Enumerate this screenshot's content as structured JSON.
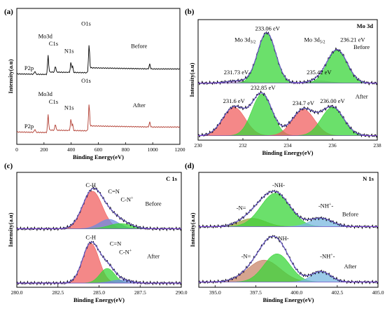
{
  "chart_data": [
    {
      "panel": "(a)",
      "type": "line",
      "xlabel": "Binding Energy(eV)",
      "ylabel": "Intensity(a.u)",
      "xlim": [
        0,
        1200
      ],
      "xticks": [
        0,
        200,
        400,
        600,
        800,
        1000,
        1200
      ],
      "series": [
        {
          "name": "Before",
          "color": "#000000",
          "baseline": 55,
          "peaks": [
            [
              133,
              2.5
            ],
            [
              230,
              14
            ],
            [
              284,
              5
            ],
            [
              398,
              8
            ],
            [
              410,
              5
            ],
            [
              531,
              22
            ],
            [
              978,
              4
            ]
          ]
        },
        {
          "name": "After",
          "color": "#b03a2e",
          "baseline": 8,
          "peaks": [
            [
              133,
              2.5
            ],
            [
              230,
              13
            ],
            [
              284,
              5
            ],
            [
              398,
              9
            ],
            [
              410,
              5
            ],
            [
              531,
              21
            ],
            [
              978,
              4
            ]
          ]
        }
      ],
      "annotations": [
        {
          "text": "Mo3d",
          "x": 210,
          "y": 86,
          "color": "#000000"
        },
        {
          "text": "C1s",
          "x": 270,
          "y": 80,
          "color": "#000000"
        },
        {
          "text": "N1s",
          "x": 385,
          "y": 74,
          "color": "#000000"
        },
        {
          "text": "O1s",
          "x": 510,
          "y": 96,
          "color": "#000000"
        },
        {
          "text": "P2p",
          "x": 90,
          "y": 60,
          "color": "#000000"
        },
        {
          "text": "Before",
          "x": 900,
          "y": 78,
          "color": "#000000"
        },
        {
          "text": "Mo3d",
          "x": 210,
          "y": 39,
          "color": "#b03a2e"
        },
        {
          "text": "C1s",
          "x": 270,
          "y": 33,
          "color": "#b03a2e"
        },
        {
          "text": "N1s",
          "x": 385,
          "y": 28,
          "color": "#b03a2e"
        },
        {
          "text": "O1s",
          "x": 510,
          "y": 50,
          "color": "#b03a2e"
        },
        {
          "text": "P2p",
          "x": 90,
          "y": 13,
          "color": "#b03a2e"
        },
        {
          "text": "After",
          "x": 900,
          "y": 30,
          "color": "#b03a2e"
        }
      ]
    },
    {
      "panel": "(b)",
      "title": "Mo 3d",
      "type": "line",
      "xlabel": "Binding Energy(eV)",
      "ylabel": "Intensity(a.u)",
      "xlim": [
        230,
        238
      ],
      "xticks": [
        230,
        232,
        234,
        236,
        238
      ],
      "series": [
        {
          "name": "Before",
          "baseline": 52,
          "components": [
            {
              "center": 231.73,
              "height": 2,
              "width": 0.5,
              "color": "#c8a0d8"
            },
            {
              "center": 233.06,
              "height": 46,
              "width": 0.4,
              "color": "#39d639"
            },
            {
              "center": 235.42,
              "height": 2,
              "width": 0.5,
              "color": "#c8a0d8"
            },
            {
              "center": 236.21,
              "height": 30,
              "width": 0.45,
              "color": "#39d639"
            }
          ]
        },
        {
          "name": "After",
          "baseline": 4,
          "components": [
            {
              "center": 231.6,
              "height": 26,
              "width": 0.5,
              "color": "#f06060"
            },
            {
              "center": 232.85,
              "height": 38,
              "width": 0.45,
              "color": "#39d639"
            },
            {
              "center": 234.7,
              "height": 24,
              "width": 0.5,
              "color": "#f06060"
            },
            {
              "center": 236.0,
              "height": 26,
              "width": 0.5,
              "color": "#39d639"
            }
          ]
        }
      ],
      "annotations": [
        {
          "text": "233.06 eV",
          "x": 233.1,
          "y": 100
        },
        {
          "text": "Mo 3d",
          "sub": "3/2",
          "x": 232.1,
          "y": 90
        },
        {
          "text": "Mo 3d",
          "sub": "5/2",
          "x": 235.2,
          "y": 90
        },
        {
          "text": "236.21 eV",
          "x": 236.9,
          "y": 90
        },
        {
          "text": "Before",
          "x": 237.3,
          "y": 83
        },
        {
          "text": "231.73 eV",
          "x": 231.7,
          "y": 60
        },
        {
          "text": "235.42 eV",
          "x": 235.4,
          "y": 60
        },
        {
          "text": "232.85 eV",
          "x": 232.9,
          "y": 46
        },
        {
          "text": "After",
          "x": 237.3,
          "y": 38
        },
        {
          "text": "231.6 eV",
          "x": 231.6,
          "y": 34
        },
        {
          "text": "234.7 eV",
          "x": 234.7,
          "y": 32
        },
        {
          "text": "236.00 eV",
          "x": 236.0,
          "y": 34
        }
      ]
    },
    {
      "panel": "(c)",
      "title": "C 1s",
      "type": "line",
      "xlabel": "Binding Energy(eV)",
      "ylabel": "Intensity(a.u)",
      "xlim": [
        280,
        290
      ],
      "xticks": [
        280.0,
        282.5,
        285.0,
        287.5,
        290.0
      ],
      "xtick_labels": [
        "280.0",
        "282.5",
        "285.0",
        "287.5",
        "290.0"
      ],
      "series": [
        {
          "name": "Before",
          "baseline": 56,
          "components": [
            {
              "center": 284.6,
              "height": 36,
              "width": 0.6,
              "color": "#f06060"
            },
            {
              "center": 285.6,
              "height": 9,
              "width": 0.6,
              "color": "#6e8ae0"
            },
            {
              "center": 286.3,
              "height": 5,
              "width": 0.7,
              "color": "#39d639"
            }
          ]
        },
        {
          "name": "After",
          "baseline": 4,
          "components": [
            {
              "center": 284.5,
              "height": 38,
              "width": 0.5,
              "color": "#f06060"
            },
            {
              "center": 285.5,
              "height": 14,
              "width": 0.45,
              "color": "#39d639"
            },
            {
              "center": 286.3,
              "height": 3,
              "width": 0.6,
              "color": "#6e8ae0"
            }
          ]
        }
      ],
      "annotations": [
        {
          "text": "C-H",
          "x": 284.5,
          "y": 96
        },
        {
          "text": "C=N",
          "x": 285.9,
          "y": 90
        },
        {
          "text": "C-N",
          "sup": "+",
          "x": 286.7,
          "y": 82
        },
        {
          "text": "Before",
          "x": 288.3,
          "y": 78
        },
        {
          "text": "C-H",
          "x": 284.5,
          "y": 46
        },
        {
          "text": "C=N",
          "x": 286.0,
          "y": 40
        },
        {
          "text": "C-N",
          "sup": "+",
          "x": 286.6,
          "y": 32
        },
        {
          "text": "After",
          "x": 288.3,
          "y": 28
        }
      ]
    },
    {
      "panel": "(d)",
      "title": "N 1s",
      "type": "line",
      "xlabel": "Binding Energy(eV)",
      "ylabel": "Intensity(a.u)",
      "xlim": [
        394,
        405
      ],
      "xticks": [
        395.0,
        397.5,
        400.0,
        402.5,
        405.0
      ],
      "xtick_labels": [
        "395.0",
        "397.5",
        "400.0",
        "402.5",
        "405.0"
      ],
      "series": [
        {
          "name": "Before",
          "baseline": 58,
          "components": [
            {
              "center": 397.3,
              "height": 8,
              "width": 0.8,
              "color": "#9aa23a"
            },
            {
              "center": 398.7,
              "height": 32,
              "width": 0.9,
              "color": "#39d639"
            },
            {
              "center": 401.5,
              "height": 8,
              "width": 0.7,
              "color": "#7ab8e0"
            }
          ]
        },
        {
          "name": "After",
          "baseline": 5,
          "components": [
            {
              "center": 398.0,
              "height": 21,
              "width": 1.0,
              "color": "#c8866a"
            },
            {
              "center": 398.8,
              "height": 27,
              "width": 0.8,
              "color": "#39d639"
            },
            {
              "center": 401.5,
              "height": 10,
              "width": 0.6,
              "color": "#7ab8e0"
            }
          ]
        }
      ],
      "annotations": [
        {
          "text": "-NH-",
          "x": 398.9,
          "y": 96
        },
        {
          "text": "-N=",
          "x": 396.6,
          "y": 74
        },
        {
          "text": "-NH",
          "sup": "+",
          "suffix": "-",
          "x": 401.8,
          "y": 76
        },
        {
          "text": "Before",
          "x": 403.3,
          "y": 68
        },
        {
          "text": "NH-",
          "x": 399.2,
          "y": 45
        },
        {
          "text": "-N=",
          "x": 396.9,
          "y": 28
        },
        {
          "text": "-NH",
          "sup": "+",
          "suffix": "-",
          "x": 401.9,
          "y": 28
        },
        {
          "text": "After",
          "x": 403.3,
          "y": 18
        }
      ]
    }
  ]
}
